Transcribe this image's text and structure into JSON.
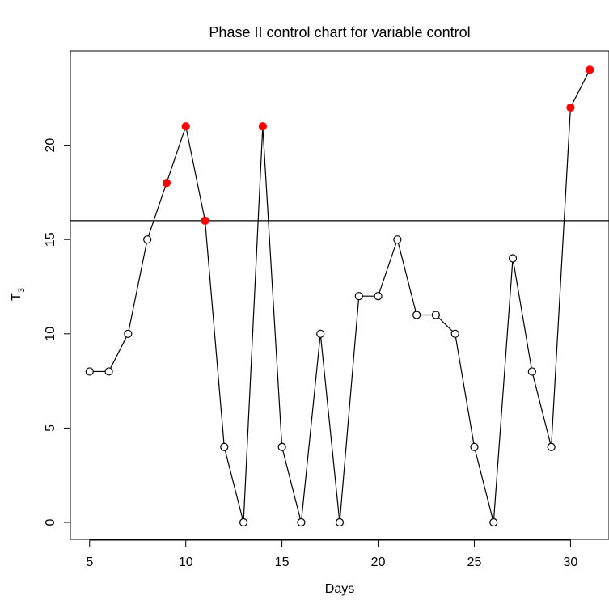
{
  "chart_data": {
    "type": "line",
    "title": "Phase II control chart for variable control",
    "xlabel": "Days",
    "ylabel_main": "T",
    "ylabel_subscript": "3",
    "xlim": [
      4,
      32
    ],
    "ylim": [
      -0.9,
      25
    ],
    "xticks": [
      5,
      10,
      15,
      20,
      25,
      30
    ],
    "yticks": [
      0,
      5,
      10,
      15,
      20
    ],
    "control_limit": 16,
    "line_color": "#000000",
    "out_of_control_color": "#ff0000",
    "x": [
      5,
      6,
      7,
      8,
      9,
      10,
      11,
      12,
      13,
      14,
      15,
      16,
      17,
      18,
      19,
      20,
      21,
      22,
      23,
      24,
      25,
      26,
      27,
      28,
      29,
      30,
      31
    ],
    "y": [
      8,
      8,
      10,
      15,
      18,
      21,
      16,
      4,
      0,
      21,
      4,
      0,
      10,
      0,
      12,
      12,
      15,
      11,
      11,
      10,
      4,
      0,
      14,
      8,
      4,
      22,
      24
    ],
    "out_of_control": [
      false,
      false,
      false,
      false,
      true,
      true,
      true,
      false,
      false,
      true,
      false,
      false,
      false,
      false,
      false,
      false,
      false,
      false,
      false,
      false,
      false,
      false,
      false,
      false,
      false,
      true,
      true
    ]
  }
}
